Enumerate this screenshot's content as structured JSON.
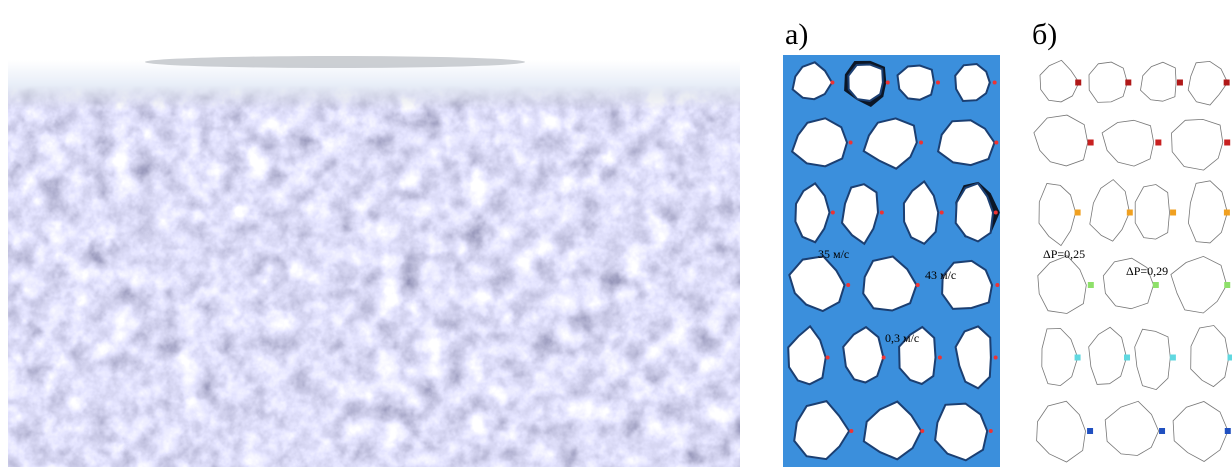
{
  "panels": [
    {
      "label": "а)",
      "annotations": [
        "35 м/с",
        "43 м/с",
        "0,3 м/с"
      ]
    },
    {
      "label": "б)",
      "annotations": [
        "ΔP=0,25",
        "ΔP=0,29"
      ]
    }
  ]
}
